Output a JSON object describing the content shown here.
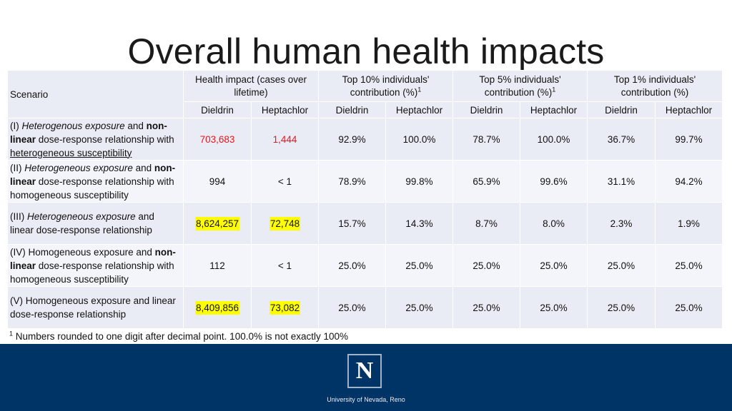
{
  "title": "Overall human health impacts",
  "table": {
    "header": {
      "scenario": "Scenario",
      "groups": [
        {
          "label": "Health impact (cases over lifetime)",
          "sup": ""
        },
        {
          "label": "Top 10% individuals' contribution (%)",
          "sup": "1"
        },
        {
          "label": "Top 5% individuals' contribution (%)",
          "sup": "1"
        },
        {
          "label": "Top 1% individuals' contribution (%)",
          "sup": ""
        }
      ],
      "sub": [
        "Dieldrin",
        "Heptachlor",
        "Dieldrin",
        "Heptachlor",
        "Dieldrin",
        "Heptachlor",
        "Dieldrin",
        "Heptachlor"
      ]
    },
    "rows": [
      {
        "scenario": {
          "p1": "(I) ",
          "p2": "Heterogenous exposure",
          "p3": " and ",
          "p4": "non-linear",
          "p5": " dose-response relationship with ",
          "p6": "heterogeneous susceptibility"
        },
        "values": [
          "703,683",
          "1,444",
          "92.9%",
          "100.0%",
          "78.7%",
          "100.0%",
          "36.7%",
          "99.7%"
        ]
      },
      {
        "scenario": {
          "p1": "(II) ",
          "p2": "Heterogeneous exposure",
          "p3": " and ",
          "p4": "non-linear",
          "p5": " dose-response relationship with homogeneous susceptibility"
        },
        "values": [
          "994",
          "< 1",
          "78.9%",
          "99.8%",
          "65.9%",
          "99.6%",
          "31.1%",
          "94.2%"
        ]
      },
      {
        "scenario": {
          "p1": "(III) ",
          "p2": "Heterogeneous exposure",
          "p3": " and linear dose-response relationship"
        },
        "values": [
          "8,624,257",
          "72,748",
          "15.7%",
          "14.3%",
          "8.7%",
          "8.0%",
          "2.3%",
          "1.9%"
        ]
      },
      {
        "scenario": {
          "p1": "(IV) Homogeneous exposure and ",
          "p2": "non-linear",
          "p3": " dose-response relationship with homogeneous susceptibility"
        },
        "values": [
          "112",
          "< 1",
          "25.0%",
          "25.0%",
          "25.0%",
          "25.0%",
          "25.0%",
          "25.0%"
        ]
      },
      {
        "scenario": {
          "p1": "(V) Homogeneous exposure and linear dose-response relationship"
        },
        "values": [
          "8,409,856",
          "73,082",
          "25.0%",
          "25.0%",
          "25.0%",
          "25.0%",
          "25.0%",
          "25.0%"
        ]
      }
    ],
    "footnote": {
      "sup": "1",
      "text": " Numbers rounded to one digit after decimal point. 100.0% is not exactly 100%"
    }
  },
  "footer": {
    "logo_letter": "N",
    "university": "University of Nevada, Reno"
  },
  "colors": {
    "footer_band": "#003366",
    "table_cell": "#e9ecf4",
    "highlight": "#ffff00",
    "red_text": "#e8161b"
  }
}
